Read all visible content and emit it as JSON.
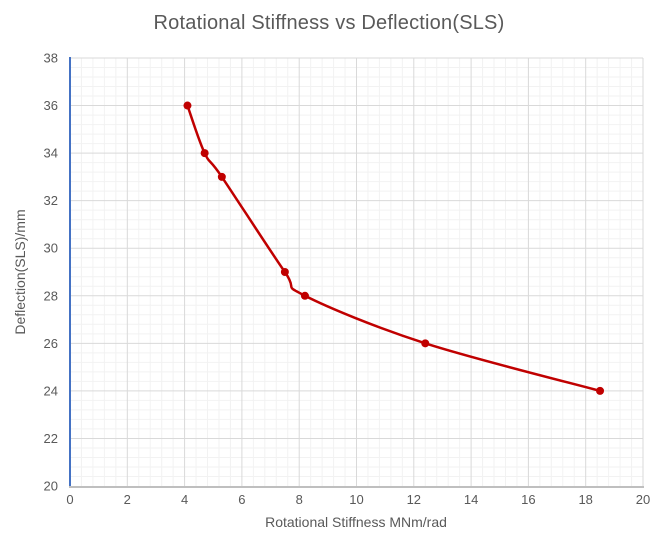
{
  "chart_title": "Rotational Stiffness vs Deflection(SLS)",
  "colors": {
    "series": "#c00000",
    "marker": "#c00000",
    "y_axis_line": "#4472c4",
    "x_axis_line": "#bfbfbf",
    "grid_major": "#d9d9d9",
    "grid_minor": "#f2f2f2",
    "text": "#595959",
    "background": "#ffffff"
  },
  "chart_data": {
    "type": "line",
    "title": "Rotational Stiffness vs Deflection(SLS)",
    "xlabel": "Rotational Stiffness MNm/rad",
    "ylabel": "Deflection(SLS)/mm",
    "series": [
      {
        "name": "Deflection(SLS)",
        "x": [
          4.1,
          4.7,
          5.3,
          7.5,
          8.2,
          12.4,
          18.5
        ],
        "y": [
          36,
          34,
          33,
          29,
          28,
          26,
          24
        ]
      }
    ],
    "xlim": [
      0,
      20
    ],
    "ylim": [
      20,
      38
    ],
    "x_major_unit": 2,
    "y_major_unit": 2,
    "x_minor_unit": 0.4,
    "y_minor_unit": 0.4,
    "x_tick_labels": [
      "0",
      "2",
      "4",
      "6",
      "8",
      "10",
      "12",
      "14",
      "16",
      "18",
      "20"
    ],
    "y_tick_labels": [
      "20",
      "22",
      "24",
      "26",
      "28",
      "30",
      "32",
      "34",
      "36",
      "38"
    ],
    "grid": "major+minor",
    "legend": "none",
    "line_style": "smoothed",
    "markers": "circle"
  }
}
